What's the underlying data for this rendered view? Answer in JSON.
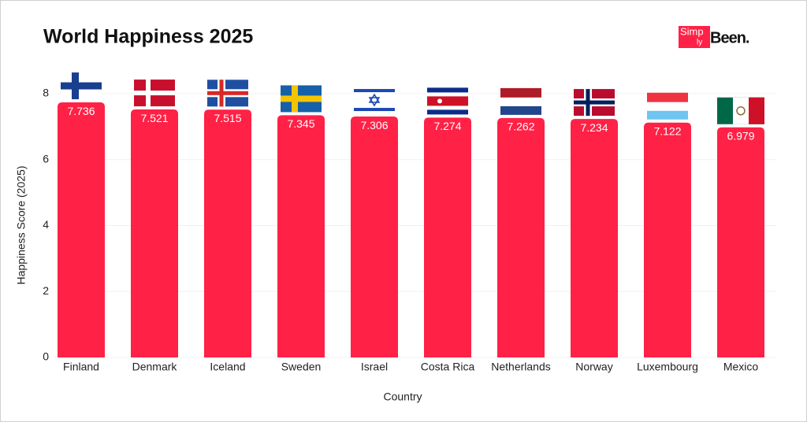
{
  "chart_data": {
    "type": "bar",
    "title": "World Happiness 2025",
    "logo": {
      "box_text": "Simp",
      "small_text": "ly",
      "text": "Been."
    },
    "x_label": "Country",
    "y_label": "Happiness Score (2025)",
    "categories": [
      "Finland",
      "Denmark",
      "Iceland",
      "Sweden",
      "Israel",
      "Costa Rica",
      "Netherlands",
      "Norway",
      "Luxembourg",
      "Mexico"
    ],
    "values": [
      7.736,
      7.521,
      7.515,
      7.345,
      7.306,
      7.274,
      7.262,
      7.234,
      7.122,
      6.979
    ],
    "color": "#ff2146",
    "ylim": [
      0,
      8
    ],
    "yticks": [
      0,
      2,
      4,
      6,
      8
    ],
    "grid": true
  }
}
